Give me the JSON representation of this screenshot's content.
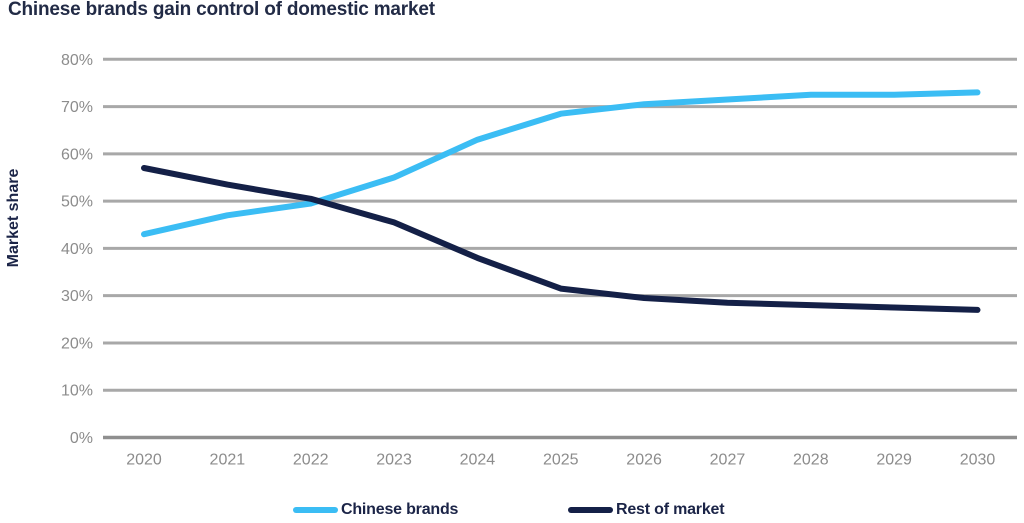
{
  "title": "Chinese brands gain control of domestic market",
  "chart_data": {
    "type": "line",
    "title": "Chinese brands gain control of domestic market",
    "xlabel": "",
    "ylabel": "Market share",
    "categories": [
      "2020",
      "2021",
      "2022",
      "2023",
      "2024",
      "2025",
      "2026",
      "2027",
      "2028",
      "2029",
      "2030"
    ],
    "series": [
      {
        "name": "Chinese brands",
        "color": "#3BBDF4",
        "values": [
          43,
          47,
          49.5,
          55,
          63,
          68.5,
          70.5,
          71.5,
          72.5,
          72.5,
          73
        ]
      },
      {
        "name": "Rest of market",
        "color": "#142047",
        "values": [
          57,
          53.5,
          50.5,
          45.5,
          38,
          31.5,
          29.5,
          28.5,
          28,
          27.5,
          27
        ]
      }
    ],
    "ylim": [
      0,
      80
    ],
    "yticks": [
      {
        "label": "0%",
        "value": 0
      },
      {
        "label": "10%",
        "value": 10
      },
      {
        "label": "20%",
        "value": 20
      },
      {
        "label": "30%",
        "value": 30
      },
      {
        "label": "40%",
        "value": 40
      },
      {
        "label": "50%",
        "value": 50
      },
      {
        "label": "60%",
        "value": 60
      },
      {
        "label": "70%",
        "value": 70
      },
      {
        "label": "80%",
        "value": 80
      }
    ],
    "grid": "horizontal",
    "legend_position": "bottom"
  },
  "colors": {
    "title_text": "#222B46",
    "axis_text": "#8C8C8C",
    "ylabel_text": "#1B2447",
    "gridline": "#A8A8A8",
    "baseline": "#8F8F8F",
    "background": "#FFFFFF"
  }
}
